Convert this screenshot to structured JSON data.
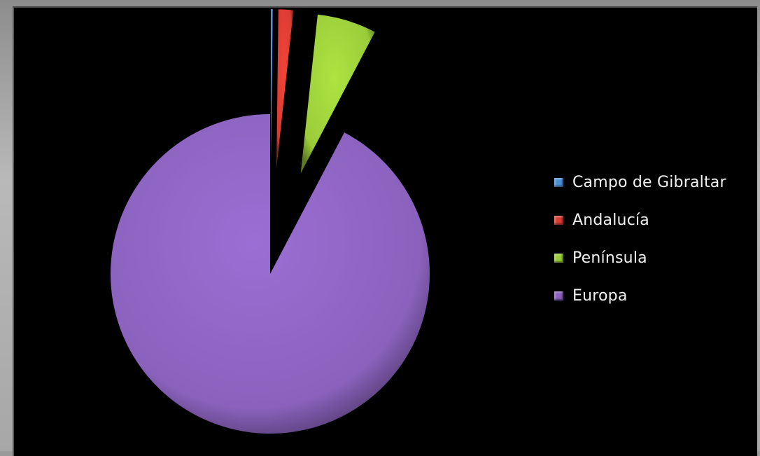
{
  "chart_data": {
    "type": "pie",
    "exploded": true,
    "style": "3d-shaded",
    "background": "#000000",
    "legend_position": "right",
    "slices": [
      {
        "name": "Campo de Gibraltar",
        "value": 0.2,
        "color": "#4a90d9"
      },
      {
        "name": "Andalucía",
        "value": 1.5,
        "color": "#d93c32"
      },
      {
        "name": "Península",
        "value": 6.0,
        "color": "#9acc3a"
      },
      {
        "name": "Europa",
        "value": 92.3,
        "color": "#8a62bd"
      }
    ]
  }
}
